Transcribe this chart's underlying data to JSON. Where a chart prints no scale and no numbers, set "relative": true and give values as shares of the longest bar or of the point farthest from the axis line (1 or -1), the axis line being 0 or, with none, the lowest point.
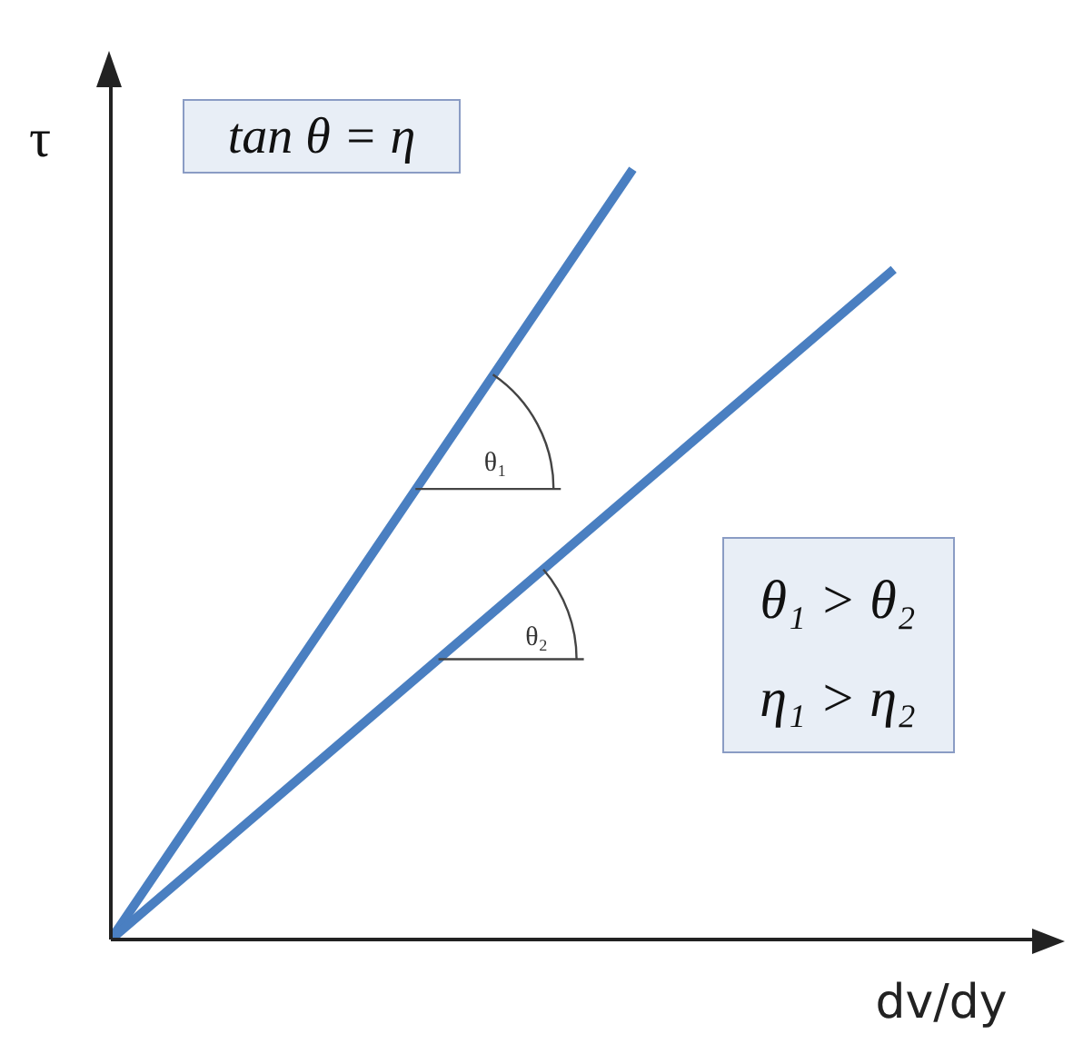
{
  "chart_data": {
    "type": "line",
    "relative": true,
    "xlabel": "dv/dy",
    "ylabel": "τ",
    "grid": false,
    "legend": false,
    "marker": "none",
    "line_style": "solid",
    "categories": [
      null,
      null,
      null,
      null
    ],
    "series": [
      {
        "color": "#4a7fc1",
        "values": [
          0,
          0.5,
          1,
          null
        ]
      },
      {
        "color": "#4a7fc1",
        "values": [
          0,
          0.29,
          0.58,
          0.87
        ]
      }
    ],
    "annotations": [
      "tan θ = η",
      "θ₁",
      "θ₂",
      "θ₁ > θ₂",
      "η₁ > η₂"
    ]
  }
}
